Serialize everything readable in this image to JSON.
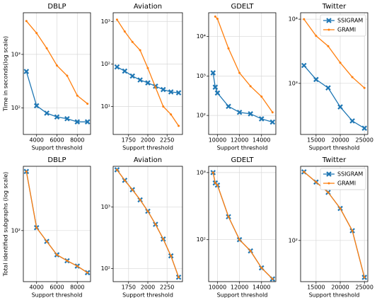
{
  "chart_data": [
    {
      "type": "line",
      "title": "DBLP",
      "xlabel": "Support threshold",
      "ylabel": "Time in seconds(log scale)",
      "x": [
        3000,
        4000,
        5000,
        6000,
        7000,
        8000,
        9000
      ],
      "series": [
        {
          "name": "SSIGRAM",
          "color": "#1f77b4",
          "marker": "X",
          "values": [
            480,
            110,
            80,
            68,
            63,
            55,
            55
          ]
        },
        {
          "name": "GRAMI",
          "color": "#ff7f0e",
          "marker": "o",
          "values": [
            4200,
            2500,
            1300,
            620,
            400,
            170,
            120
          ]
        }
      ],
      "xlim": [
        2700,
        9300
      ],
      "ylim": [
        32,
        6000
      ],
      "xticks": [
        4000,
        6000,
        8000
      ],
      "yticks": [
        {
          "value": 100,
          "label": "10²"
        },
        {
          "value": 1000,
          "label": "10³"
        }
      ],
      "log_y": true,
      "grid": true
    },
    {
      "type": "line",
      "title": "Aviation",
      "xlabel": "Support threshold",
      "x": [
        1600,
        1700,
        1800,
        1900,
        2000,
        2100,
        2200,
        2300,
        2400
      ],
      "series": [
        {
          "name": "SSIGRAM",
          "color": "#1f77b4",
          "marker": "X",
          "values": [
            85,
            68,
            52,
            42,
            36,
            30,
            25,
            22,
            21
          ]
        },
        {
          "name": "GRAMI",
          "color": "#ff7f0e",
          "marker": "o",
          "values": [
            1100,
            580,
            330,
            210,
            80,
            28,
            10,
            6.5,
            3.5
          ]
        }
      ],
      "xlim": [
        1550,
        2450
      ],
      "ylim": [
        2.2,
        1600
      ],
      "xticks": [
        1750,
        2000,
        2250
      ],
      "yticks": [
        {
          "value": 10,
          "label": "10¹"
        },
        {
          "value": 100,
          "label": "10²"
        },
        {
          "value": 1000,
          "label": "10³"
        }
      ],
      "log_y": true,
      "grid": true
    },
    {
      "type": "line",
      "title": "GDELT",
      "xlabel": "Support threshold",
      "x": [
        9600,
        9800,
        10000,
        11000,
        12000,
        13000,
        14000,
        15000
      ],
      "series": [
        {
          "name": "SSIGRAM",
          "color": "#1f77b4",
          "marker": "X",
          "values": [
            1200,
            520,
            370,
            170,
            120,
            110,
            82,
            68
          ]
        },
        {
          "name": "GRAMI",
          "color": "#ff7f0e",
          "marker": "o",
          "values": [
            null,
            32000,
            28000,
            5000,
            1200,
            550,
            300,
            120
          ]
        }
      ],
      "xlim": [
        9200,
        15300
      ],
      "ylim": [
        33,
        40000
      ],
      "xticks": [
        10000,
        12000,
        14000
      ],
      "yticks": [
        {
          "value": 100,
          "label": "10²"
        },
        {
          "value": 1000,
          "label": "10³"
        },
        {
          "value": 10000,
          "label": "10⁴"
        }
      ],
      "log_y": true,
      "grid": true
    },
    {
      "type": "line",
      "title": "Twitter",
      "xlabel": "Support threshold",
      "x": [
        12500,
        15000,
        17500,
        20000,
        22500,
        25000
      ],
      "series": [
        {
          "name": "SSIGRAM",
          "color": "#1f77b4",
          "marker": "X",
          "values": [
            1900,
            1150,
            850,
            430,
            260,
            200
          ]
        },
        {
          "name": "GRAMI",
          "color": "#ff7f0e",
          "marker": "o",
          "values": [
            10000,
            5500,
            3800,
            2100,
            1250,
            850
          ]
        }
      ],
      "xlim": [
        11800,
        25700
      ],
      "ylim": [
        160,
        12600
      ],
      "xticks": [
        15000,
        20000,
        25000
      ],
      "yticks": [
        {
          "value": 1000,
          "label": "10³"
        },
        {
          "value": 10000,
          "label": "10⁴"
        }
      ],
      "log_y": true,
      "grid": true,
      "legend": "upper right"
    },
    {
      "type": "line",
      "title": "DBLP",
      "xlabel": "Support threshold",
      "ylabel": "Total identified subgraphs (log scale)",
      "x": [
        3000,
        4000,
        5000,
        6000,
        7000,
        8000,
        9000
      ],
      "series": [
        {
          "name": "SSIGRAM",
          "color": "#1f77b4",
          "marker": "X",
          "values": [
            700,
            110,
            70,
            45,
            37,
            31,
            25
          ]
        },
        {
          "name": "GRAMI",
          "color": "#ff7f0e",
          "marker": "o",
          "values": [
            700,
            110,
            70,
            45,
            37,
            31,
            25
          ]
        }
      ],
      "xlim": [
        2700,
        9300
      ],
      "ylim": [
        18.6,
        830
      ],
      "xticks": [
        4000,
        6000,
        8000
      ],
      "yticks": [
        {
          "value": 100,
          "label": "10²"
        }
      ],
      "log_y": true,
      "grid": true
    },
    {
      "type": "line",
      "title": "Aviation",
      "xlabel": "Support threshold",
      "x": [
        1600,
        1700,
        1800,
        1900,
        2000,
        2100,
        2200,
        2300,
        2400
      ],
      "series": [
        {
          "name": "SSIGRAM",
          "color": "#1f77b4",
          "marker": "X",
          "values": [
            4000,
            2700,
            1900,
            1300,
            850,
            520,
            300,
            160,
            72
          ]
        },
        {
          "name": "GRAMI",
          "color": "#ff7f0e",
          "marker": "o",
          "values": [
            4000,
            2700,
            1900,
            1300,
            850,
            520,
            300,
            160,
            72
          ]
        }
      ],
      "xlim": [
        1550,
        2450
      ],
      "ylim": [
        61,
        4560
      ],
      "xticks": [
        1750,
        2000,
        2250
      ],
      "yticks": [
        {
          "value": 100,
          "label": "10²"
        },
        {
          "value": 1000,
          "label": "10³"
        }
      ],
      "log_y": true,
      "grid": true
    },
    {
      "type": "line",
      "title": "GDELT",
      "xlabel": "Support threshold",
      "x": [
        9600,
        9800,
        10000,
        11000,
        12000,
        13000,
        14000,
        15000
      ],
      "series": [
        {
          "name": "SSIGRAM",
          "color": "#1f77b4",
          "marker": "X",
          "values": [
            1000,
            700,
            650,
            220,
            100,
            68,
            38,
            26
          ]
        },
        {
          "name": "GRAMI",
          "color": "#ff7f0e",
          "marker": "o",
          "values": [
            1000,
            700,
            650,
            220,
            100,
            68,
            38,
            26
          ]
        }
      ],
      "xlim": [
        9200,
        15300
      ],
      "ylim": [
        23.7,
        1240
      ],
      "xticks": [
        10000,
        12000,
        14000
      ],
      "yticks": [
        {
          "value": 100,
          "label": "10²"
        },
        {
          "value": 1000,
          "label": "10³"
        }
      ],
      "log_y": true,
      "grid": true
    },
    {
      "type": "line",
      "title": "Twitter",
      "xlabel": "Support threshold",
      "x": [
        12500,
        15000,
        17500,
        20000,
        22500,
        25000
      ],
      "series": [
        {
          "name": "SSIGRAM",
          "color": "#1f77b4",
          "marker": "X",
          "values": [
            480,
            380,
            300,
            208,
            125,
            43
          ]
        },
        {
          "name": "GRAMI",
          "color": "#ff7f0e",
          "marker": "o",
          "values": [
            480,
            380,
            300,
            208,
            125,
            43
          ]
        }
      ],
      "xlim": [
        11800,
        25700
      ],
      "ylim": [
        39,
        545
      ],
      "xticks": [
        15000,
        20000,
        25000
      ],
      "yticks": [
        {
          "value": 100,
          "label": "10²"
        }
      ],
      "log_y": true,
      "grid": true,
      "legend": "upper right"
    }
  ]
}
